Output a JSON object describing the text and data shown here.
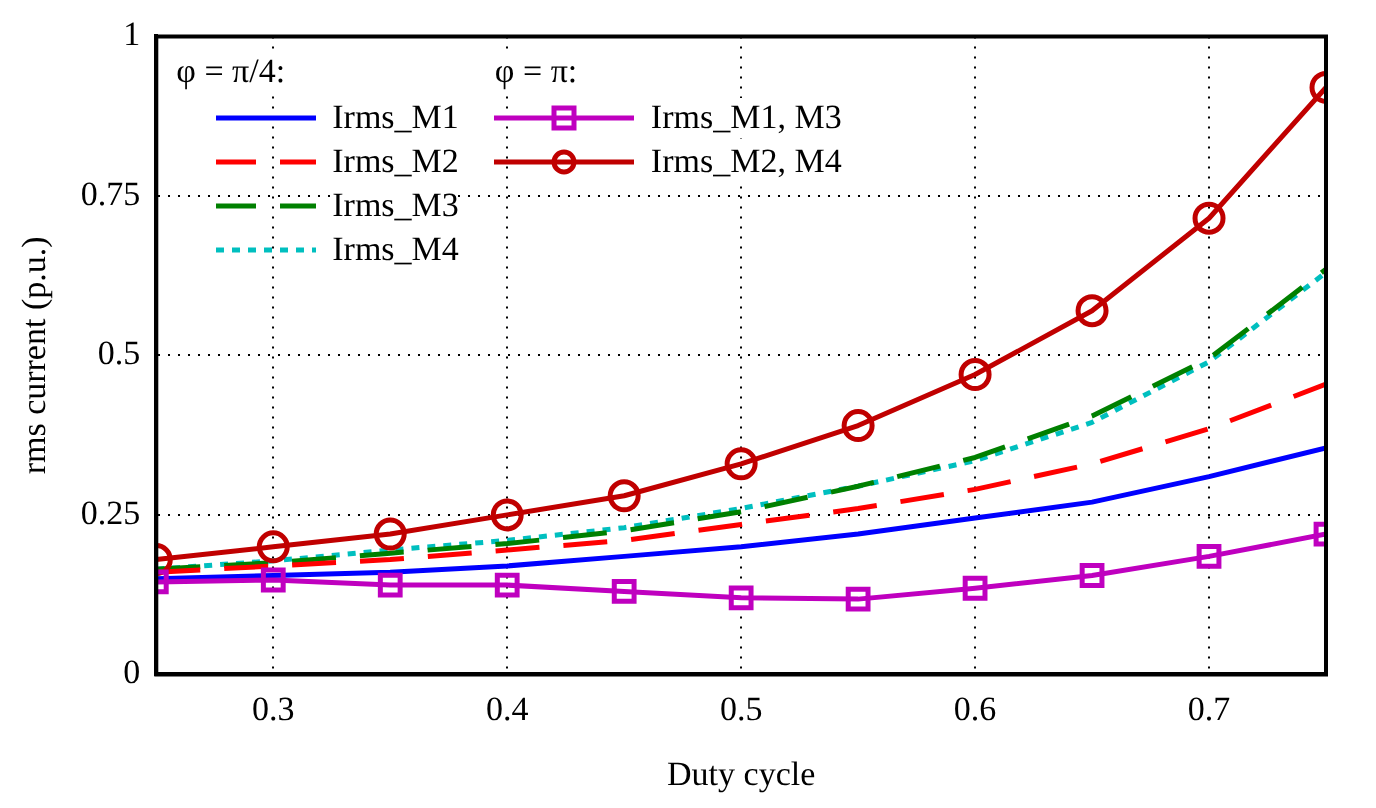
{
  "chart_data": {
    "type": "line",
    "xlabel": "Duty cycle",
    "ylabel": "rms current (p.u.)",
    "x": [
      0.25,
      0.3,
      0.35,
      0.4,
      0.45,
      0.5,
      0.55,
      0.6,
      0.65,
      0.7,
      0.75
    ],
    "xlim": [
      0.25,
      0.75
    ],
    "xticks": [
      0.3,
      0.4,
      0.5,
      0.6,
      0.7
    ],
    "ylim": [
      0,
      1
    ],
    "yticks": [
      0,
      0.25,
      0.5,
      0.75,
      1
    ],
    "grid": true,
    "legend": "top left",
    "annotations": [
      "φ = π/4:",
      "φ = π:"
    ],
    "series": [
      {
        "name": "Irms_M1",
        "color": "#0000ff",
        "line_style": "solid",
        "marker": "none",
        "values": [
          0.15,
          0.155,
          0.16,
          0.17,
          0.185,
          0.2,
          0.22,
          0.245,
          0.27,
          0.31,
          0.355
        ]
      },
      {
        "name": "Irms_M2",
        "color": "#ff0000",
        "line_style": "dashed",
        "marker": "none",
        "values": [
          0.16,
          0.17,
          0.18,
          0.195,
          0.21,
          0.235,
          0.26,
          0.29,
          0.33,
          0.385,
          0.455
        ]
      },
      {
        "name": "Irms_M3",
        "color": "#008000",
        "line_style": "dashed",
        "marker": "none",
        "values": [
          0.165,
          0.175,
          0.19,
          0.205,
          0.225,
          0.255,
          0.295,
          0.34,
          0.405,
          0.495,
          0.635
        ]
      },
      {
        "name": "Irms_M4",
        "color": "#00bfbf",
        "line_style": "dotted",
        "marker": "none",
        "values": [
          0.165,
          0.178,
          0.195,
          0.21,
          0.23,
          0.26,
          0.295,
          0.335,
          0.395,
          0.49,
          0.63
        ]
      },
      {
        "name": "Irms_M1, M3",
        "color": "#bf00bf",
        "line_style": "solid",
        "marker": "square",
        "values": [
          0.145,
          0.148,
          0.14,
          0.14,
          0.13,
          0.12,
          0.118,
          0.135,
          0.155,
          0.185,
          0.22
        ]
      },
      {
        "name": "Irms_M2, M4",
        "color": "#c00000",
        "line_style": "solid",
        "marker": "circle",
        "values": [
          0.18,
          0.2,
          0.22,
          0.25,
          0.28,
          0.33,
          0.39,
          0.47,
          0.57,
          0.715,
          0.92
        ]
      }
    ]
  }
}
